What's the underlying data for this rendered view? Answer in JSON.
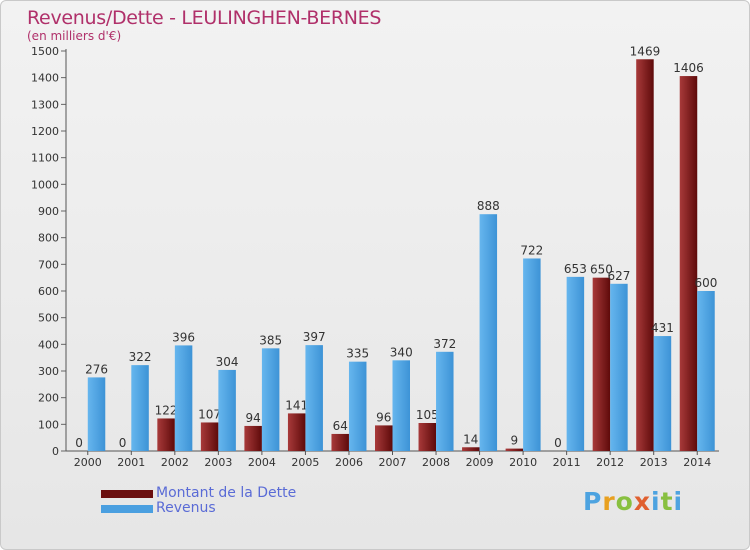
{
  "title": "Revenus/Dette - LEULINGHEN-BERNES",
  "subtitle": "(en milliers d'€)",
  "logo": {
    "letters": [
      "P",
      "r",
      "o",
      "x",
      "i",
      "t",
      "i"
    ]
  },
  "colors": {
    "dette": "#6b0f0f",
    "revenus": "#4a9fe0",
    "title": "#b0306a",
    "legend_text": "#5a6bd6"
  },
  "chart_data": {
    "type": "bar",
    "categories": [
      "2000",
      "2001",
      "2002",
      "2003",
      "2004",
      "2005",
      "2006",
      "2007",
      "2008",
      "2009",
      "2010",
      "2011",
      "2012",
      "2013",
      "2014"
    ],
    "series": [
      {
        "name": "Montant de la Dette",
        "values": [
          0,
          0,
          122,
          107,
          94,
          141,
          64,
          96,
          105,
          14,
          9,
          0,
          650,
          1469,
          1406
        ],
        "labels": [
          "0",
          "0",
          "122",
          "107",
          "94",
          "141",
          "64",
          "96",
          "105",
          "14",
          "9",
          "0",
          "650",
          "1469",
          "1406"
        ]
      },
      {
        "name": "Revenus",
        "values": [
          276,
          322,
          396,
          304,
          385,
          397,
          335,
          340,
          372,
          888,
          722,
          653,
          627,
          431,
          600
        ],
        "labels": [
          "276",
          "322",
          "396",
          "304",
          "385",
          "397",
          "335",
          "340",
          "372",
          "888",
          "722",
          "653",
          "627",
          "431",
          "600"
        ]
      }
    ],
    "ylim": [
      0,
      1500
    ],
    "yticks": [
      "0",
      "100",
      "200",
      "300",
      "400",
      "500",
      "600",
      "700",
      "800",
      "900",
      "1000",
      "1100",
      "1200",
      "1300",
      "1400",
      "1500"
    ],
    "grid": false,
    "legend": "bottom-left"
  }
}
